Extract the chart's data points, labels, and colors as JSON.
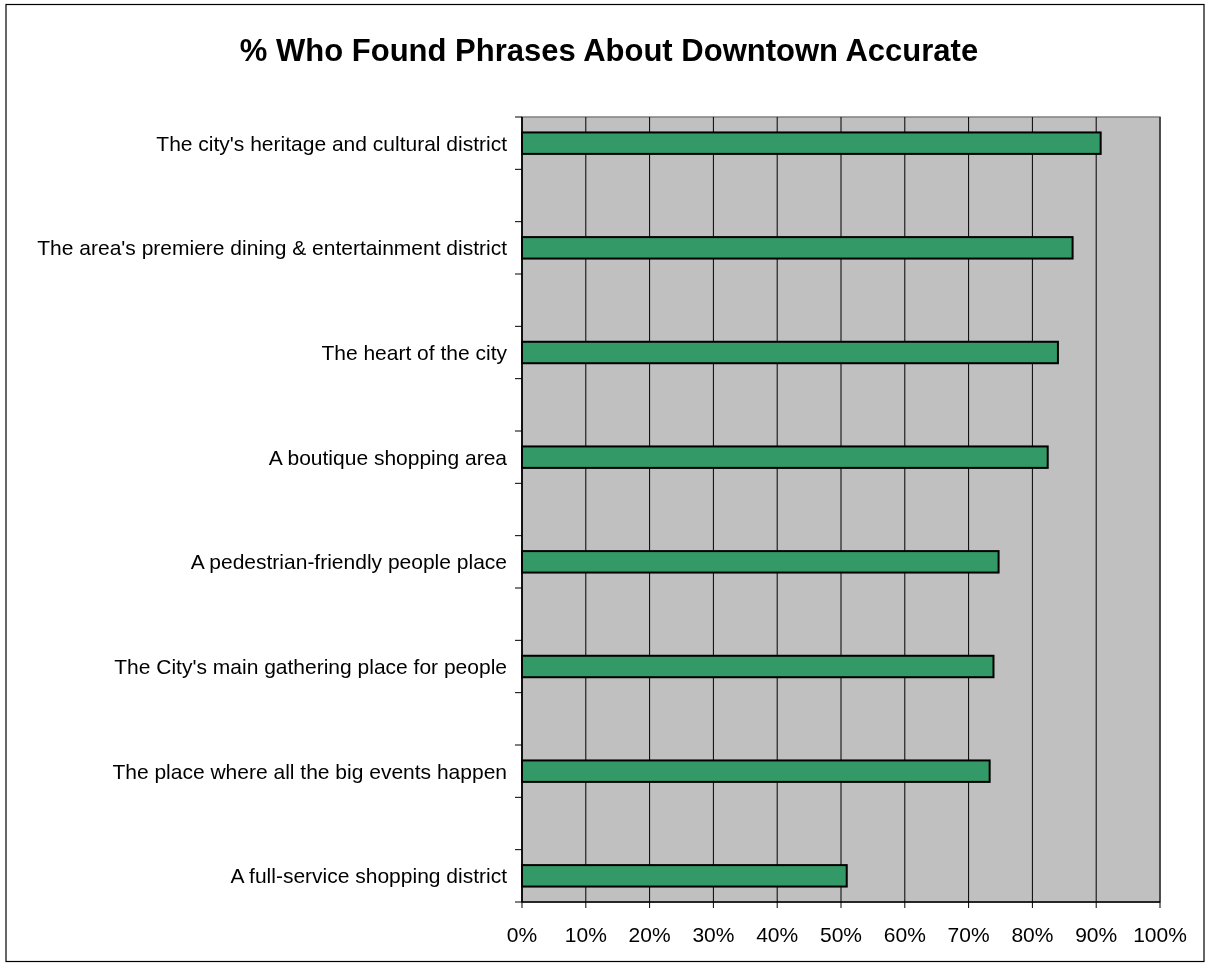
{
  "chart_data": {
    "type": "bar",
    "orientation": "horizontal",
    "title": "% Who Found Phrases About Downtown Accurate",
    "categories": [
      "The city's heritage and cultural district",
      "The area's premiere dining & entertainment district",
      "The heart of the city",
      "A boutique shopping area",
      "A pedestrian-friendly people place",
      "The City's main gathering place for people",
      "The place where all the big events happen",
      "A full-service shopping district"
    ],
    "values": [
      90.7,
      86.3,
      84.0,
      82.4,
      74.7,
      73.9,
      73.3,
      50.9
    ],
    "color": "#339966",
    "xlim": [
      0,
      100
    ],
    "xticks": [
      {
        "value": 0,
        "label": "0%"
      },
      {
        "value": 10,
        "label": "10%"
      },
      {
        "value": 20,
        "label": "20%"
      },
      {
        "value": 30,
        "label": "30%"
      },
      {
        "value": 40,
        "label": "40%"
      },
      {
        "value": 50,
        "label": "50%"
      },
      {
        "value": 60,
        "label": "60%"
      },
      {
        "value": 70,
        "label": "70%"
      },
      {
        "value": 80,
        "label": "80%"
      },
      {
        "value": 90,
        "label": "90%"
      },
      {
        "value": 100,
        "label": "100%"
      }
    ],
    "grid": "x"
  }
}
